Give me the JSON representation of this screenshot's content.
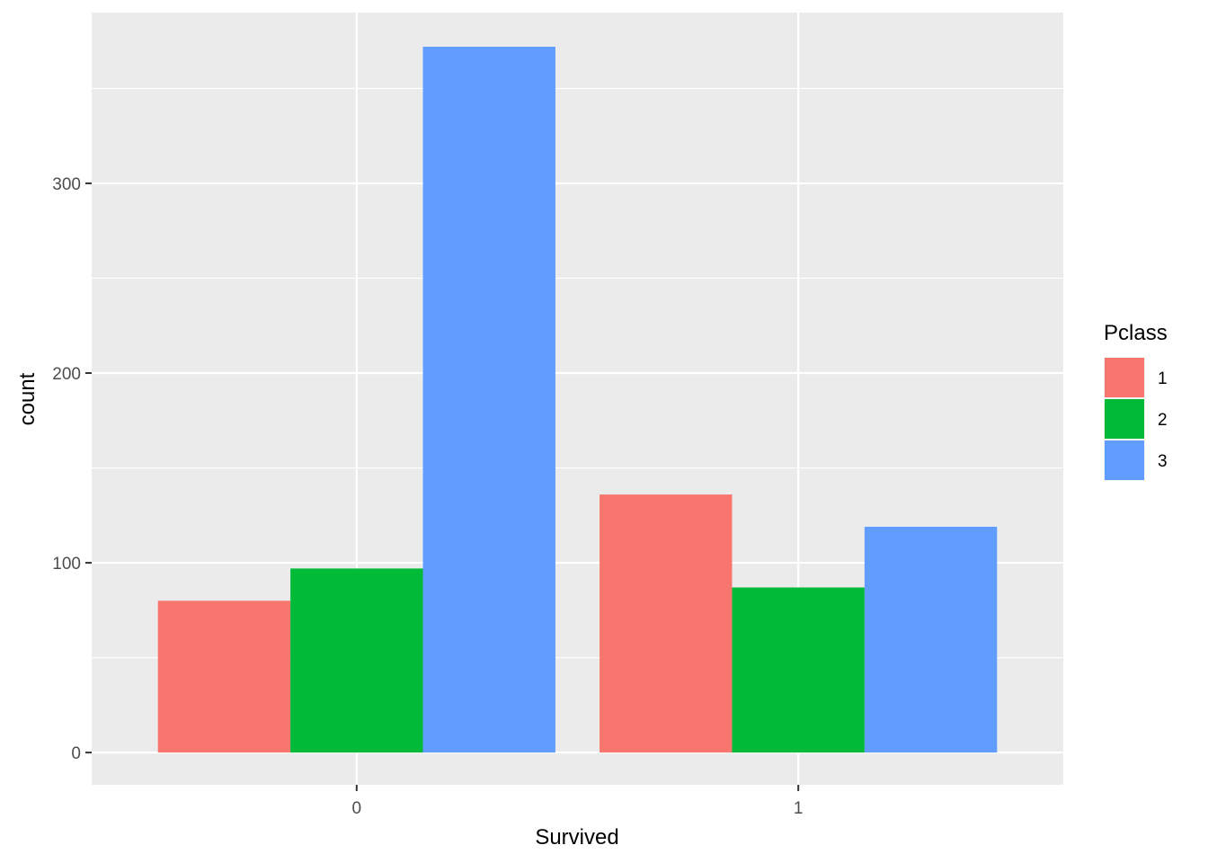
{
  "chart_data": {
    "type": "bar",
    "title": "",
    "xlabel": "Survived",
    "ylabel": "count",
    "categories": [
      "0",
      "1"
    ],
    "series": [
      {
        "name": "1",
        "color": "#F8766D",
        "values": [
          80,
          136
        ]
      },
      {
        "name": "2",
        "color": "#00BA38",
        "values": [
          97,
          87
        ]
      },
      {
        "name": "3",
        "color": "#619CFF",
        "values": [
          372,
          119
        ]
      }
    ],
    "y_ticks": [
      0,
      100,
      200,
      300
    ],
    "ylim": [
      -17,
      390
    ],
    "grid": true,
    "legend": {
      "title": "Pclass",
      "position": "right"
    },
    "panel_color": "#EBEBEB",
    "grid_color": "#FFFFFF"
  }
}
